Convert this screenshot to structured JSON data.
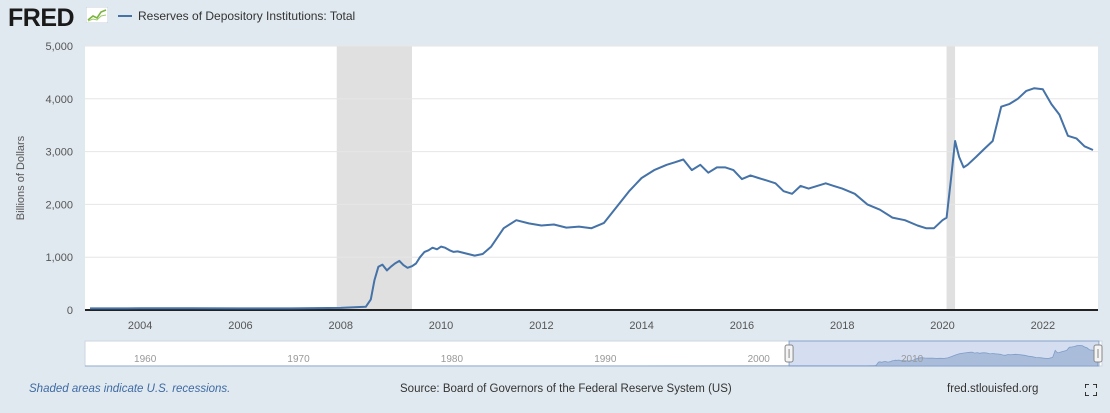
{
  "header": {
    "logo": "FRED",
    "legend_label": "Reserves of Depository Institutions: Total"
  },
  "colors": {
    "series": "#4572a7",
    "recession": "#e0e0e0",
    "background": "#e1e9f0",
    "plot": "#ffffff",
    "navigator_fill": "#a9bddb"
  },
  "footer": {
    "recession_note": "Shaded areas indicate U.S. recessions.",
    "source": "Source: Board of Governors of the Federal Reserve System (US)",
    "site": "fred.stlouisfed.org"
  },
  "icons": {
    "fullscreen": "fullscreen-icon",
    "logo_graph": "fred-logo-graph-icon"
  },
  "chart_data": {
    "type": "line",
    "title": "",
    "xlabel": "",
    "ylabel": "Billions of Dollars",
    "xlim": [
      2002.9,
      2023.1
    ],
    "ylim": [
      0,
      5000
    ],
    "yticks": [
      0,
      1000,
      2000,
      3000,
      4000,
      5000
    ],
    "ytick_labels": [
      "0",
      "1,000",
      "2,000",
      "3,000",
      "4,000",
      "5,000"
    ],
    "xticks": [
      2004,
      2006,
      2008,
      2010,
      2012,
      2014,
      2016,
      2018,
      2020,
      2022
    ],
    "xtick_labels": [
      "2004",
      "2006",
      "2008",
      "2010",
      "2012",
      "2014",
      "2016",
      "2018",
      "2020",
      "2022"
    ],
    "grid": true,
    "legend": "top-left",
    "recessions": [
      [
        2007.92,
        2009.42
      ],
      [
        2020.08,
        2020.25
      ]
    ],
    "series": [
      {
        "name": "Reserves of Depository Institutions: Total",
        "x": [
          2003.0,
          2004.0,
          2005.0,
          2006.0,
          2007.0,
          2008.0,
          2008.5,
          2008.6,
          2008.67,
          2008.75,
          2008.83,
          2008.92,
          2009.0,
          2009.08,
          2009.17,
          2009.25,
          2009.33,
          2009.42,
          2009.5,
          2009.58,
          2009.67,
          2009.75,
          2009.83,
          2009.92,
          2010.0,
          2010.08,
          2010.17,
          2010.25,
          2010.33,
          2010.5,
          2010.67,
          2010.83,
          2011.0,
          2011.25,
          2011.5,
          2011.75,
          2012.0,
          2012.25,
          2012.5,
          2012.75,
          2013.0,
          2013.25,
          2013.5,
          2013.75,
          2014.0,
          2014.25,
          2014.5,
          2014.67,
          2014.83,
          2015.0,
          2015.17,
          2015.33,
          2015.5,
          2015.67,
          2015.83,
          2016.0,
          2016.17,
          2016.33,
          2016.5,
          2016.67,
          2016.83,
          2017.0,
          2017.17,
          2017.33,
          2017.5,
          2017.67,
          2017.83,
          2018.0,
          2018.25,
          2018.5,
          2018.75,
          2019.0,
          2019.25,
          2019.5,
          2019.67,
          2019.83,
          2020.0,
          2020.08,
          2020.17,
          2020.25,
          2020.33,
          2020.42,
          2020.5,
          2020.67,
          2020.83,
          2021.0,
          2021.17,
          2021.33,
          2021.5,
          2021.67,
          2021.83,
          2022.0,
          2022.17,
          2022.33,
          2022.5,
          2022.67,
          2022.83,
          2023.0
        ],
        "y": [
          30,
          33,
          32,
          31,
          30,
          40,
          60,
          200,
          560,
          820,
          860,
          750,
          820,
          880,
          930,
          850,
          800,
          830,
          880,
          1000,
          1100,
          1130,
          1180,
          1150,
          1200,
          1180,
          1130,
          1100,
          1110,
          1070,
          1030,
          1060,
          1200,
          1550,
          1700,
          1640,
          1600,
          1620,
          1560,
          1580,
          1550,
          1650,
          1950,
          2250,
          2500,
          2650,
          2750,
          2800,
          2850,
          2650,
          2750,
          2600,
          2700,
          2700,
          2650,
          2480,
          2550,
          2500,
          2450,
          2400,
          2250,
          2200,
          2350,
          2300,
          2350,
          2400,
          2350,
          2300,
          2200,
          2000,
          1900,
          1750,
          1700,
          1600,
          1550,
          1550,
          1700,
          1750,
          2500,
          3200,
          2900,
          2700,
          2750,
          2900,
          3050,
          3200,
          3850,
          3900,
          4000,
          4150,
          4200,
          4180,
          3900,
          3700,
          3300,
          3250,
          3100,
          3030
        ]
      }
    ]
  },
  "navigator": {
    "labels": [
      "1960",
      "1970",
      "1980",
      "1990",
      "2000",
      "2010"
    ],
    "label_years": [
      1960,
      1970,
      1980,
      1990,
      2000,
      2010
    ],
    "range": [
      1957,
      2023.3
    ],
    "selected": [
      2002.9,
      2023.1
    ]
  }
}
